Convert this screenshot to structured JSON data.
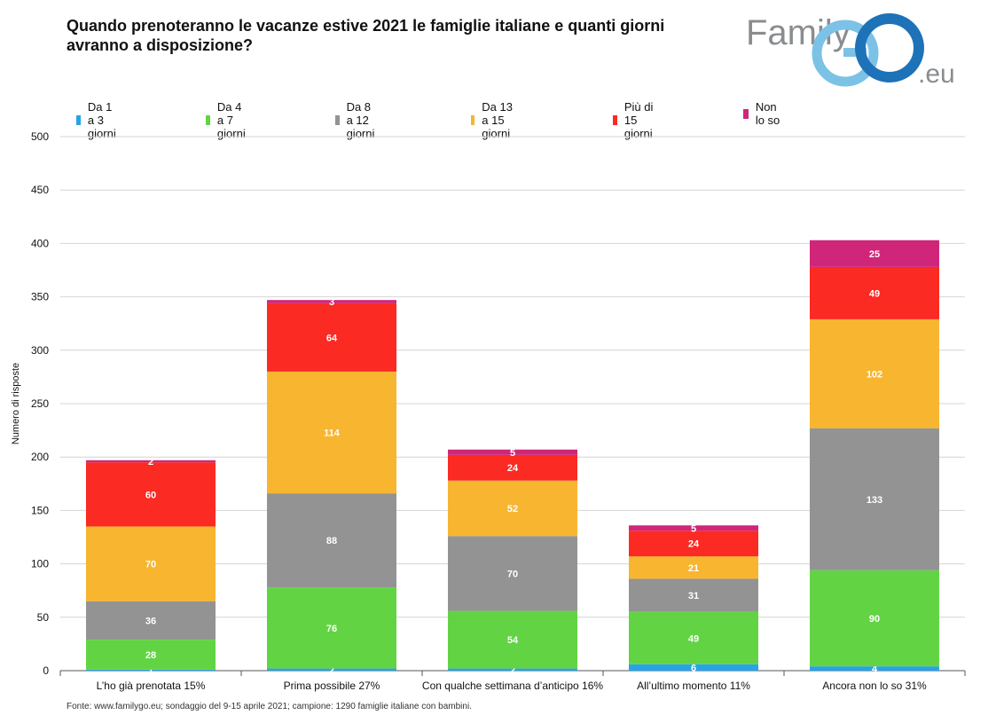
{
  "title": "Quando prenoteranno le vacanze estive 2021 le famiglie italiane e quanti giorni avranno a disposizione?",
  "logo": {
    "text_family": "Family",
    "text_go": "GO",
    "text_eu": ".eu"
  },
  "source": "Fonte: www.familygo.eu; sondaggio del 9-15 aprile 2021; campione: 1290 famiglie italiane con bambini.",
  "chart_data": {
    "type": "bar",
    "stacked": true,
    "categories": [
      "L’ho già prenotata 15%",
      "Prima possibile 27%",
      "Con qualche settimana d’anticipo 16%",
      "All’ultimo momento 11%",
      "Ancora non lo so 31%"
    ],
    "series": [
      {
        "name": "Da 1 a 3 giorni",
        "color": "#27a3e8",
        "values": [
          1,
          2,
          2,
          6,
          4
        ]
      },
      {
        "name": "Da 4 a 7 giorni",
        "color": "#62d444",
        "values": [
          28,
          76,
          54,
          49,
          90
        ]
      },
      {
        "name": "Da 8 a 12 giorni",
        "color": "#939393",
        "values": [
          36,
          88,
          70,
          31,
          133
        ]
      },
      {
        "name": "Da 13 a 15 giorni",
        "color": "#f7b530",
        "values": [
          70,
          114,
          52,
          21,
          102
        ]
      },
      {
        "name": "Più di 15 giorni",
        "color": "#fb2a23",
        "values": [
          60,
          64,
          24,
          24,
          49
        ]
      },
      {
        "name": "Non lo so",
        "color": "#d02679",
        "values": [
          2,
          3,
          5,
          5,
          25
        ]
      }
    ],
    "ylabel": "Numero di risposte",
    "xlabel": "",
    "ylim": [
      0,
      500
    ],
    "yticks": [
      0,
      50,
      100,
      150,
      200,
      250,
      300,
      350,
      400,
      450,
      500
    ],
    "grid": true,
    "legend_position": "top"
  }
}
